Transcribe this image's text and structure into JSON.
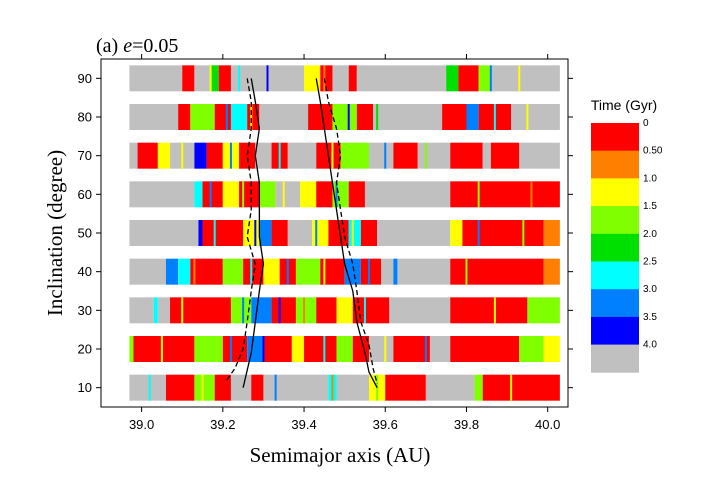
{
  "chart_data": {
    "type": "heatmap",
    "title_prefix": "(a) ",
    "title_var": "e",
    "title_suffix": "=0.05",
    "xlabel": "Semimajor axis (AU)",
    "ylabel": "Inclination (degree)",
    "xlim": [
      38.9,
      40.05
    ],
    "ylim": [
      5,
      95
    ],
    "xticks": [
      39.0,
      39.2,
      39.4,
      39.6,
      39.8,
      40.0
    ],
    "xtick_labels": [
      "39.0",
      "39.2",
      "39.4",
      "39.6",
      "39.8",
      "40.0"
    ],
    "yticks": [
      10,
      20,
      30,
      40,
      50,
      60,
      70,
      80,
      90
    ],
    "ytick_labels": [
      "10",
      "20",
      "30",
      "40",
      "50",
      "60",
      "70",
      "80",
      "90"
    ],
    "band_x_range": [
      38.97,
      40.03
    ],
    "colorbar": {
      "title": "Time (Gyr)",
      "labels": [
        "0",
        "0.50",
        "1.0",
        "1.5",
        "2.0",
        "2.5",
        "3.0",
        "3.5",
        "4.0"
      ],
      "colors": [
        "#ff0000",
        "#ff8000",
        "#ffff00",
        "#80ff00",
        "#00e000",
        "#00ffff",
        "#0080ff",
        "#0000ff",
        "#c0c0c0"
      ]
    },
    "rows": [
      {
        "inclination": 90,
        "segments": [
          [
            38.97,
            39.1,
            8
          ],
          [
            39.1,
            39.13,
            0
          ],
          [
            39.13,
            39.17,
            8
          ],
          [
            39.17,
            39.19,
            4
          ],
          [
            39.19,
            39.22,
            0
          ],
          [
            39.22,
            39.4,
            8
          ],
          [
            39.4,
            39.44,
            2
          ],
          [
            39.44,
            39.47,
            0
          ],
          [
            39.47,
            39.51,
            8
          ],
          [
            39.51,
            39.53,
            0
          ],
          [
            39.53,
            39.75,
            8
          ],
          [
            39.75,
            39.78,
            4
          ],
          [
            39.78,
            39.83,
            0
          ],
          [
            39.83,
            39.86,
            3
          ],
          [
            39.86,
            40.03,
            8
          ]
        ]
      },
      {
        "inclination": 80,
        "segments": [
          [
            38.97,
            39.09,
            8
          ],
          [
            39.09,
            39.12,
            0
          ],
          [
            39.12,
            39.18,
            3
          ],
          [
            39.18,
            39.22,
            0
          ],
          [
            39.22,
            39.26,
            5
          ],
          [
            39.26,
            39.29,
            0
          ],
          [
            39.29,
            39.41,
            8
          ],
          [
            39.41,
            39.47,
            0
          ],
          [
            39.47,
            39.53,
            3
          ],
          [
            39.53,
            39.57,
            0
          ],
          [
            39.57,
            39.74,
            8
          ],
          [
            39.74,
            39.8,
            0
          ],
          [
            39.8,
            39.83,
            6
          ],
          [
            39.83,
            39.91,
            0
          ],
          [
            39.91,
            40.03,
            8
          ]
        ]
      },
      {
        "inclination": 70,
        "segments": [
          [
            38.97,
            38.99,
            8
          ],
          [
            38.99,
            39.04,
            0
          ],
          [
            39.04,
            39.07,
            2
          ],
          [
            39.07,
            39.13,
            8
          ],
          [
            39.13,
            39.16,
            7
          ],
          [
            39.16,
            39.2,
            0
          ],
          [
            39.2,
            39.24,
            2
          ],
          [
            39.24,
            39.28,
            0
          ],
          [
            39.28,
            39.32,
            8
          ],
          [
            39.32,
            39.36,
            0
          ],
          [
            39.36,
            39.43,
            8
          ],
          [
            39.43,
            39.49,
            0
          ],
          [
            39.49,
            39.56,
            3
          ],
          [
            39.56,
            39.62,
            8
          ],
          [
            39.62,
            39.68,
            0
          ],
          [
            39.68,
            39.76,
            8
          ],
          [
            39.76,
            39.84,
            0
          ],
          [
            39.84,
            39.86,
            8
          ],
          [
            39.86,
            39.93,
            0
          ],
          [
            39.93,
            40.03,
            8
          ]
        ]
      },
      {
        "inclination": 60,
        "segments": [
          [
            38.97,
            39.13,
            8
          ],
          [
            39.13,
            39.15,
            5
          ],
          [
            39.15,
            39.2,
            0
          ],
          [
            39.2,
            39.24,
            2
          ],
          [
            39.24,
            39.29,
            0
          ],
          [
            39.29,
            39.33,
            3
          ],
          [
            39.33,
            39.39,
            8
          ],
          [
            39.39,
            39.43,
            2
          ],
          [
            39.43,
            39.47,
            0
          ],
          [
            39.47,
            39.51,
            3
          ],
          [
            39.51,
            39.55,
            0
          ],
          [
            39.55,
            39.76,
            8
          ],
          [
            39.76,
            40.03,
            0
          ]
        ]
      },
      {
        "inclination": 50,
        "segments": [
          [
            38.97,
            39.14,
            8
          ],
          [
            39.14,
            39.15,
            7
          ],
          [
            39.15,
            39.25,
            0
          ],
          [
            39.25,
            39.29,
            2
          ],
          [
            39.29,
            39.32,
            6
          ],
          [
            39.32,
            39.36,
            0
          ],
          [
            39.36,
            39.42,
            8
          ],
          [
            39.42,
            39.46,
            2
          ],
          [
            39.46,
            39.51,
            0
          ],
          [
            39.51,
            39.54,
            5
          ],
          [
            39.54,
            39.58,
            0
          ],
          [
            39.58,
            39.76,
            8
          ],
          [
            39.76,
            39.79,
            2
          ],
          [
            39.79,
            39.99,
            0
          ],
          [
            39.99,
            40.03,
            1
          ]
        ]
      },
      {
        "inclination": 40,
        "segments": [
          [
            38.97,
            39.06,
            8
          ],
          [
            39.06,
            39.09,
            6
          ],
          [
            39.09,
            39.12,
            5
          ],
          [
            39.12,
            39.2,
            0
          ],
          [
            39.2,
            39.25,
            3
          ],
          [
            39.25,
            39.3,
            0
          ],
          [
            39.3,
            39.34,
            2
          ],
          [
            39.34,
            39.38,
            0
          ],
          [
            39.38,
            39.44,
            3
          ],
          [
            39.44,
            39.5,
            0
          ],
          [
            39.5,
            39.54,
            6
          ],
          [
            39.54,
            39.59,
            0
          ],
          [
            39.59,
            39.62,
            8
          ],
          [
            39.62,
            39.63,
            6
          ],
          [
            39.63,
            39.76,
            8
          ],
          [
            39.76,
            39.99,
            0
          ],
          [
            39.99,
            40.03,
            1
          ]
        ]
      },
      {
        "inclination": 30,
        "segments": [
          [
            38.97,
            39.03,
            8
          ],
          [
            39.03,
            39.04,
            5
          ],
          [
            39.04,
            39.07,
            8
          ],
          [
            39.07,
            39.22,
            0
          ],
          [
            39.22,
            39.27,
            3
          ],
          [
            39.27,
            39.32,
            6
          ],
          [
            39.32,
            39.38,
            0
          ],
          [
            39.38,
            39.43,
            3
          ],
          [
            39.43,
            39.48,
            0
          ],
          [
            39.48,
            39.52,
            2
          ],
          [
            39.52,
            39.61,
            0
          ],
          [
            39.61,
            39.76,
            8
          ],
          [
            39.76,
            39.95,
            0
          ],
          [
            39.95,
            40.03,
            3
          ]
        ]
      },
      {
        "inclination": 20,
        "segments": [
          [
            38.97,
            38.98,
            3
          ],
          [
            38.98,
            39.13,
            0
          ],
          [
            39.13,
            39.2,
            3
          ],
          [
            39.2,
            39.26,
            0
          ],
          [
            39.26,
            39.3,
            6
          ],
          [
            39.3,
            39.37,
            0
          ],
          [
            39.37,
            39.4,
            2
          ],
          [
            39.4,
            39.48,
            0
          ],
          [
            39.48,
            39.52,
            3
          ],
          [
            39.52,
            39.56,
            0
          ],
          [
            39.56,
            39.62,
            8
          ],
          [
            39.62,
            39.71,
            0
          ],
          [
            39.71,
            39.76,
            8
          ],
          [
            39.76,
            39.93,
            0
          ],
          [
            39.93,
            39.99,
            3
          ],
          [
            39.99,
            40.03,
            2
          ]
        ]
      },
      {
        "inclination": 10,
        "segments": [
          [
            38.97,
            39.06,
            8
          ],
          [
            39.06,
            39.13,
            0
          ],
          [
            39.13,
            39.18,
            3
          ],
          [
            39.18,
            39.22,
            0
          ],
          [
            39.22,
            39.27,
            8
          ],
          [
            39.27,
            39.3,
            0
          ],
          [
            39.3,
            39.46,
            8
          ],
          [
            39.46,
            39.48,
            5
          ],
          [
            39.48,
            39.56,
            8
          ],
          [
            39.56,
            39.6,
            2
          ],
          [
            39.6,
            39.7,
            0
          ],
          [
            39.7,
            39.82,
            8
          ],
          [
            39.82,
            39.84,
            3
          ],
          [
            39.84,
            40.03,
            0
          ]
        ]
      }
    ],
    "stripes": [
      [
        39.17,
        90,
        2
      ],
      [
        39.24,
        90,
        5
      ],
      [
        39.31,
        90,
        7
      ],
      [
        39.45,
        90,
        1
      ],
      [
        39.86,
        90,
        6
      ],
      [
        39.93,
        90,
        2
      ],
      [
        39.21,
        80,
        6
      ],
      [
        39.27,
        80,
        2
      ],
      [
        39.51,
        80,
        7
      ],
      [
        39.58,
        80,
        4
      ],
      [
        39.87,
        80,
        5
      ],
      [
        39.95,
        80,
        2
      ],
      [
        39.1,
        70,
        2
      ],
      [
        39.22,
        70,
        6
      ],
      [
        39.34,
        70,
        5
      ],
      [
        39.47,
        70,
        2
      ],
      [
        39.6,
        70,
        6
      ],
      [
        39.7,
        70,
        3
      ],
      [
        39.17,
        60,
        6
      ],
      [
        39.25,
        60,
        3
      ],
      [
        39.35,
        60,
        2
      ],
      [
        39.48,
        60,
        6
      ],
      [
        39.83,
        60,
        3
      ],
      [
        39.96,
        60,
        1
      ],
      [
        39.18,
        50,
        5
      ],
      [
        39.28,
        50,
        7
      ],
      [
        39.43,
        50,
        6
      ],
      [
        39.52,
        50,
        2
      ],
      [
        39.83,
        50,
        6
      ],
      [
        39.94,
        50,
        3
      ],
      [
        39.13,
        40,
        1
      ],
      [
        39.27,
        40,
        5
      ],
      [
        39.36,
        40,
        6
      ],
      [
        39.45,
        40,
        2
      ],
      [
        39.56,
        40,
        6
      ],
      [
        39.8,
        40,
        3
      ],
      [
        39.1,
        30,
        2
      ],
      [
        39.25,
        30,
        6
      ],
      [
        39.34,
        30,
        7
      ],
      [
        39.4,
        30,
        1
      ],
      [
        39.55,
        30,
        5
      ],
      [
        39.87,
        30,
        2
      ],
      [
        39.05,
        20,
        2
      ],
      [
        39.22,
        20,
        6
      ],
      [
        39.3,
        20,
        7
      ],
      [
        39.45,
        20,
        5
      ],
      [
        39.6,
        20,
        2
      ],
      [
        39.7,
        20,
        6
      ],
      [
        39.02,
        10,
        5
      ],
      [
        39.15,
        10,
        2
      ],
      [
        39.33,
        10,
        6
      ],
      [
        39.47,
        10,
        1
      ],
      [
        39.58,
        10,
        3
      ],
      [
        39.91,
        10,
        2
      ]
    ],
    "series": [
      {
        "name": "left-solid",
        "style": "solid",
        "x": [
          39.27,
          39.28,
          39.29,
          39.28,
          39.29,
          39.29,
          39.29,
          39.3,
          39.29,
          39.28,
          39.27,
          39.25
        ],
        "y": [
          90,
          84,
          77,
          70,
          63,
          56,
          49,
          42,
          35,
          27,
          19,
          10
        ]
      },
      {
        "name": "left-dashed",
        "style": "dashed",
        "x": [
          39.26,
          39.27,
          39.27,
          39.26,
          39.27,
          39.27,
          39.26,
          39.28,
          39.27,
          39.26,
          39.25,
          39.23,
          39.21
        ],
        "y": [
          90,
          84,
          77,
          70,
          63,
          56,
          49,
          42,
          35,
          27,
          20,
          15,
          12
        ]
      },
      {
        "name": "right-solid",
        "style": "solid",
        "x": [
          39.43,
          39.44,
          39.45,
          39.46,
          39.47,
          39.48,
          39.49,
          39.5,
          39.52,
          39.53,
          39.55,
          39.56,
          39.58
        ],
        "y": [
          90,
          84,
          77,
          70,
          63,
          56,
          49,
          42,
          35,
          27,
          19,
          14,
          10
        ]
      },
      {
        "name": "right-dashed",
        "style": "dashed",
        "x": [
          39.45,
          39.46,
          39.48,
          39.49,
          39.48,
          39.49,
          39.5,
          39.52,
          39.53,
          39.54,
          39.56,
          39.57,
          39.58
        ],
        "y": [
          90,
          84,
          77,
          70,
          63,
          56,
          49,
          42,
          35,
          27,
          21,
          15,
          11
        ]
      }
    ]
  }
}
